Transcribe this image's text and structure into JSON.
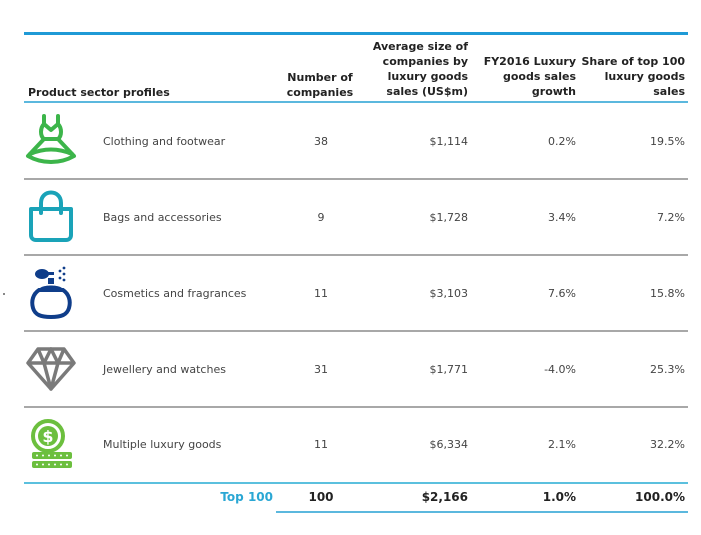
{
  "headers": {
    "sector": "Product sector profiles",
    "number": [
      "Number of",
      "companies"
    ],
    "avg_size": [
      "Average size of",
      "companies by",
      "luxury goods",
      "sales (US$m)"
    ],
    "growth": [
      "FY2016 Luxury",
      "goods sales",
      "growth"
    ],
    "share": [
      "Share of top 100",
      "luxury goods",
      "sales"
    ]
  },
  "rows": [
    {
      "icon": "dress-icon",
      "label": "Clothing and footwear",
      "number": "38",
      "avg_size": "$1,114",
      "growth": "0.2%",
      "share": "19.5%"
    },
    {
      "icon": "handbag-icon",
      "label": "Bags and accessories",
      "number": "9",
      "avg_size": "$1,728",
      "growth": "3.4%",
      "share": "7.2%"
    },
    {
      "icon": "perfume-icon",
      "label": "Cosmetics and fragrances",
      "number": "11",
      "avg_size": "$3,103",
      "growth": "7.6%",
      "share": "15.8%"
    },
    {
      "icon": "diamond-icon",
      "label": "Jewellery and watches",
      "number": "31",
      "avg_size": "$1,771",
      "growth": "-4.0%",
      "share": "25.3%"
    },
    {
      "icon": "coins-dollar-icon",
      "label": "Multiple luxury goods",
      "number": "11",
      "avg_size": "$6,334",
      "growth": "2.1%",
      "share": "32.2%"
    }
  ],
  "total": {
    "label": "Top 100",
    "number": "100",
    "avg_size": "$2,166",
    "growth": "1.0%",
    "share": "100.0%"
  },
  "colors": {
    "accent": "#1f9ad6",
    "green": "#3cb54a",
    "teal": "#1aa3b8",
    "navy": "#0f3d8a",
    "gray": "#7a7a7a",
    "lime": "#6cbf3e"
  }
}
